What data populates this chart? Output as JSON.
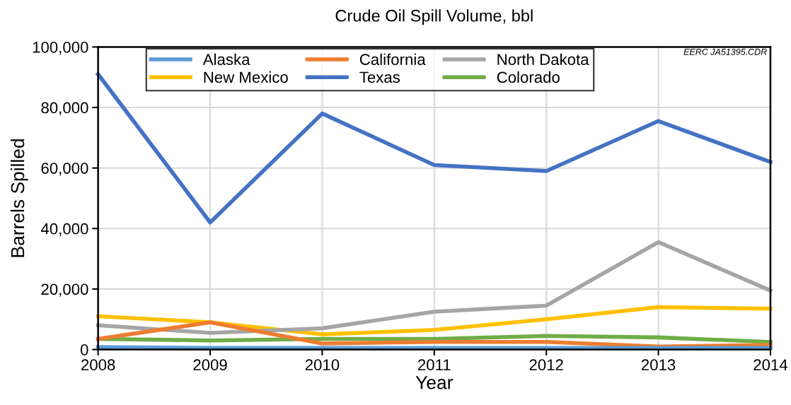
{
  "chart_data": {
    "type": "line",
    "title": "Crude Oil Spill Volume, bbl",
    "xlabel": "Year",
    "ylabel": "Barrels Spilled",
    "annotations": [
      "EERC JA51395.CDR"
    ],
    "x": [
      2008,
      2009,
      2010,
      2011,
      2012,
      2013,
      2014
    ],
    "xlim": [
      2008,
      2014
    ],
    "xticks": [
      2008,
      2009,
      2010,
      2011,
      2012,
      2013,
      2014
    ],
    "ylim": [
      0,
      100000
    ],
    "yticks": [
      {
        "value": 0,
        "label": "0"
      },
      {
        "value": 20000,
        "label": "20,000"
      },
      {
        "value": 40000,
        "label": "40,000"
      },
      {
        "value": 60000,
        "label": "60,000"
      },
      {
        "value": 80000,
        "label": "80,000"
      },
      {
        "value": 100000,
        "label": "100,000"
      }
    ],
    "grid": true,
    "legend": "top left",
    "marker": "none",
    "line_style": "solid",
    "series": [
      {
        "name": "Alaska",
        "color": "#5b9bd5",
        "values": [
          800,
          500,
          500,
          500,
          500,
          500,
          500
        ]
      },
      {
        "name": "California",
        "color": "#ed7d31",
        "values": [
          3500,
          9000,
          2000,
          2500,
          2500,
          1000,
          1500
        ]
      },
      {
        "name": "North Dakota",
        "color": "#a5a5a5",
        "values": [
          8000,
          5500,
          7000,
          12500,
          14500,
          35500,
          19500
        ]
      },
      {
        "name": "New Mexico",
        "color": "#ffc000",
        "values": [
          11000,
          9000,
          5000,
          6500,
          10000,
          14000,
          13500
        ]
      },
      {
        "name": "Texas",
        "color": "#4472c4",
        "values": [
          91000,
          42000,
          78000,
          61000,
          59000,
          75500,
          62000
        ]
      },
      {
        "name": "Colorado",
        "color": "#70ad47",
        "values": [
          3500,
          3000,
          3500,
          3500,
          4500,
          4000,
          2500
        ]
      }
    ]
  }
}
